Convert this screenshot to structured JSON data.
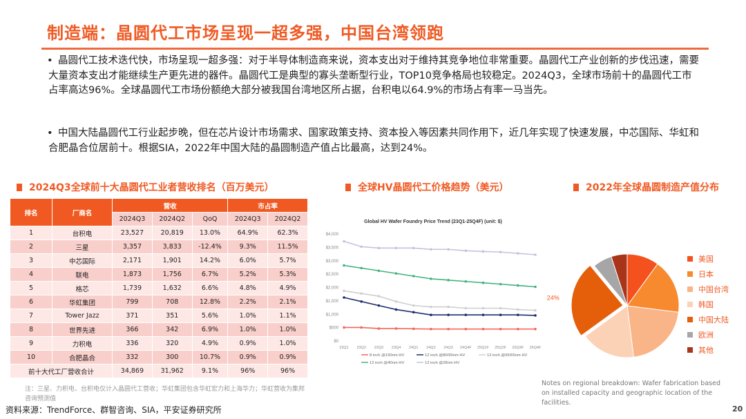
{
  "title": "制造端：晶圆代工市场呈现一超多强，中国台湾领跑",
  "bullets": [
    "晶圆代工技术迭代快，市场呈现一超多强：对于半导体制造商来说，资本支出对于维持其竞争地位非常重要。晶圆代工产业创新的步伐迅速，需要大量资本支出才能继续生产更先进的器件。晶圆代工是典型的寡头垄断型行业，TOP10竞争格局也较稳定。2024Q3，全球市场前十的晶圆代工市占率高达96%。全球晶圆代工市场份额绝大部分被我国台湾地区所占据，台积电以64.9%的市场占有率一马当先。",
    "中国大陆晶圆代工行业起步晚，但在芯片设计市场需求、国家政策支持、资本投入等因素共同作用下，近几年实现了快速发展，中芯国际、华虹和合肥晶合位居前十。根据SIA，2022年中国大陆的晶圆制造产值占比最高，达到24%。"
  ],
  "sections": {
    "table": "2024Q3全球前十大晶圆代工业者营收排名（百万美元）",
    "line": "全球HV晶圆代工价格趋势（美元）",
    "pie": "2022年全球晶圆制造产值分布"
  },
  "table": {
    "h_rank": "排名",
    "h_vendor": "厂商名",
    "h_rev": "营收",
    "h_share": "市占率",
    "sub": [
      "2024Q3",
      "2024Q2",
      "QoQ",
      "2024Q3",
      "2024Q2"
    ],
    "rows": [
      [
        "1",
        "台积电",
        "23,527",
        "20,819",
        "13.0%",
        "64.9%",
        "62.3%"
      ],
      [
        "2",
        "三星",
        "3,357",
        "3,833",
        "-12.4%",
        "9.3%",
        "11.5%"
      ],
      [
        "3",
        "中芯国际",
        "2,171",
        "1,901",
        "14.2%",
        "6.0%",
        "5.7%"
      ],
      [
        "4",
        "联电",
        "1,873",
        "1,756",
        "6.7%",
        "5.2%",
        "5.3%"
      ],
      [
        "5",
        "格芯",
        "1,739",
        "1,632",
        "6.6%",
        "4.8%",
        "4.9%"
      ],
      [
        "6",
        "华虹集团",
        "799",
        "708",
        "12.8%",
        "2.2%",
        "2.1%"
      ],
      [
        "7",
        "Tower Jazz",
        "371",
        "351",
        "5.6%",
        "1.0%",
        "1.1%"
      ],
      [
        "8",
        "世界先进",
        "366",
        "342",
        "6.9%",
        "1.0%",
        "1.0%"
      ],
      [
        "9",
        "力积电",
        "336",
        "320",
        "4.9%",
        "0.9%",
        "1.0%"
      ],
      [
        "10",
        "合肥晶合",
        "332",
        "300",
        "10.7%",
        "0.9%",
        "0.9%"
      ]
    ],
    "total": [
      "前十大代工厂营收合计",
      "34,869",
      "31,962",
      "9.1%",
      "96%",
      "96%"
    ]
  },
  "note": "注：三星、力积电、台积电仅计入晶圆代工营收；华虹集团包含华虹宏力和上海华力；华虹营收为集邦咨询预测值",
  "source": "资料来源：TrendForce、群智咨询、SIA，平安证券研究所",
  "pie_note": "Notes on regional breakdown: Wafer fabrication based on installed capacity and geographic location of the facilities.",
  "page_number": "20",
  "chart_data": [
    {
      "type": "line",
      "title": "Global HV Wafer Foundry Price Trend (23Q1-25Q4F) (unit: $)",
      "categories": [
        "23Q1",
        "23Q2",
        "23Q3",
        "23Q4",
        "24Q1",
        "24Q2",
        "24Q3",
        "24Q4F",
        "25Q1F",
        "25Q2F",
        "25Q3F",
        "25Q4F"
      ],
      "yticks": [
        "$0",
        "$500",
        "$1,000",
        "$1,500",
        "$2,000",
        "$2,500",
        "$3,000",
        "$3,500",
        "$4,000"
      ],
      "ylim": [
        0,
        4000
      ],
      "grid": false,
      "legend": "bottom",
      "series": [
        {
          "name": "8 inch @150nm HV",
          "color": "#f4655a",
          "values": [
            480,
            480,
            440,
            440,
            430,
            420,
            420,
            420,
            420,
            420,
            420,
            420
          ]
        },
        {
          "name": "12 inch @80/90nm HV",
          "color": "#1f2d6e",
          "values": [
            1600,
            1450,
            1300,
            1150,
            1050,
            950,
            950,
            950,
            950,
            950,
            950,
            930
          ]
        },
        {
          "name": "12 inch @55/65nm HV",
          "color": "#cfcfcf",
          "values": [
            1850,
            1750,
            1650,
            1450,
            1300,
            1250,
            1250,
            1200,
            1200,
            1200,
            1150,
            1120
          ]
        },
        {
          "name": "12 inch @40nm HV",
          "color": "#3fb27f",
          "values": [
            2800,
            2700,
            2600,
            2500,
            2400,
            2300,
            2250,
            2200,
            2150,
            2100,
            2050,
            2000
          ]
        },
        {
          "name": "12 inch @28nm HV",
          "color": "#c5c2dc",
          "values": [
            3700,
            3500,
            3450,
            3450,
            3450,
            3400,
            3400,
            3350,
            3320,
            3300,
            3250,
            3200
          ]
        }
      ]
    },
    {
      "type": "pie",
      "legend": "right",
      "data_label": "24%",
      "slices": [
        {
          "name": "美国",
          "value": 10,
          "color": "#f4511e"
        },
        {
          "name": "日本",
          "value": 17,
          "color": "#f7892f"
        },
        {
          "name": "中国台湾",
          "value": 21,
          "color": "#f9b487"
        },
        {
          "name": "韩国",
          "value": 17,
          "color": "#fbd2b5"
        },
        {
          "name": "中国大陆",
          "value": 24,
          "color": "#e55e0a",
          "exploded": true
        },
        {
          "name": "欧洲",
          "value": 6,
          "color": "#a6a6a6"
        },
        {
          "name": "其他",
          "value": 5,
          "color": "#a8341a"
        }
      ]
    }
  ]
}
